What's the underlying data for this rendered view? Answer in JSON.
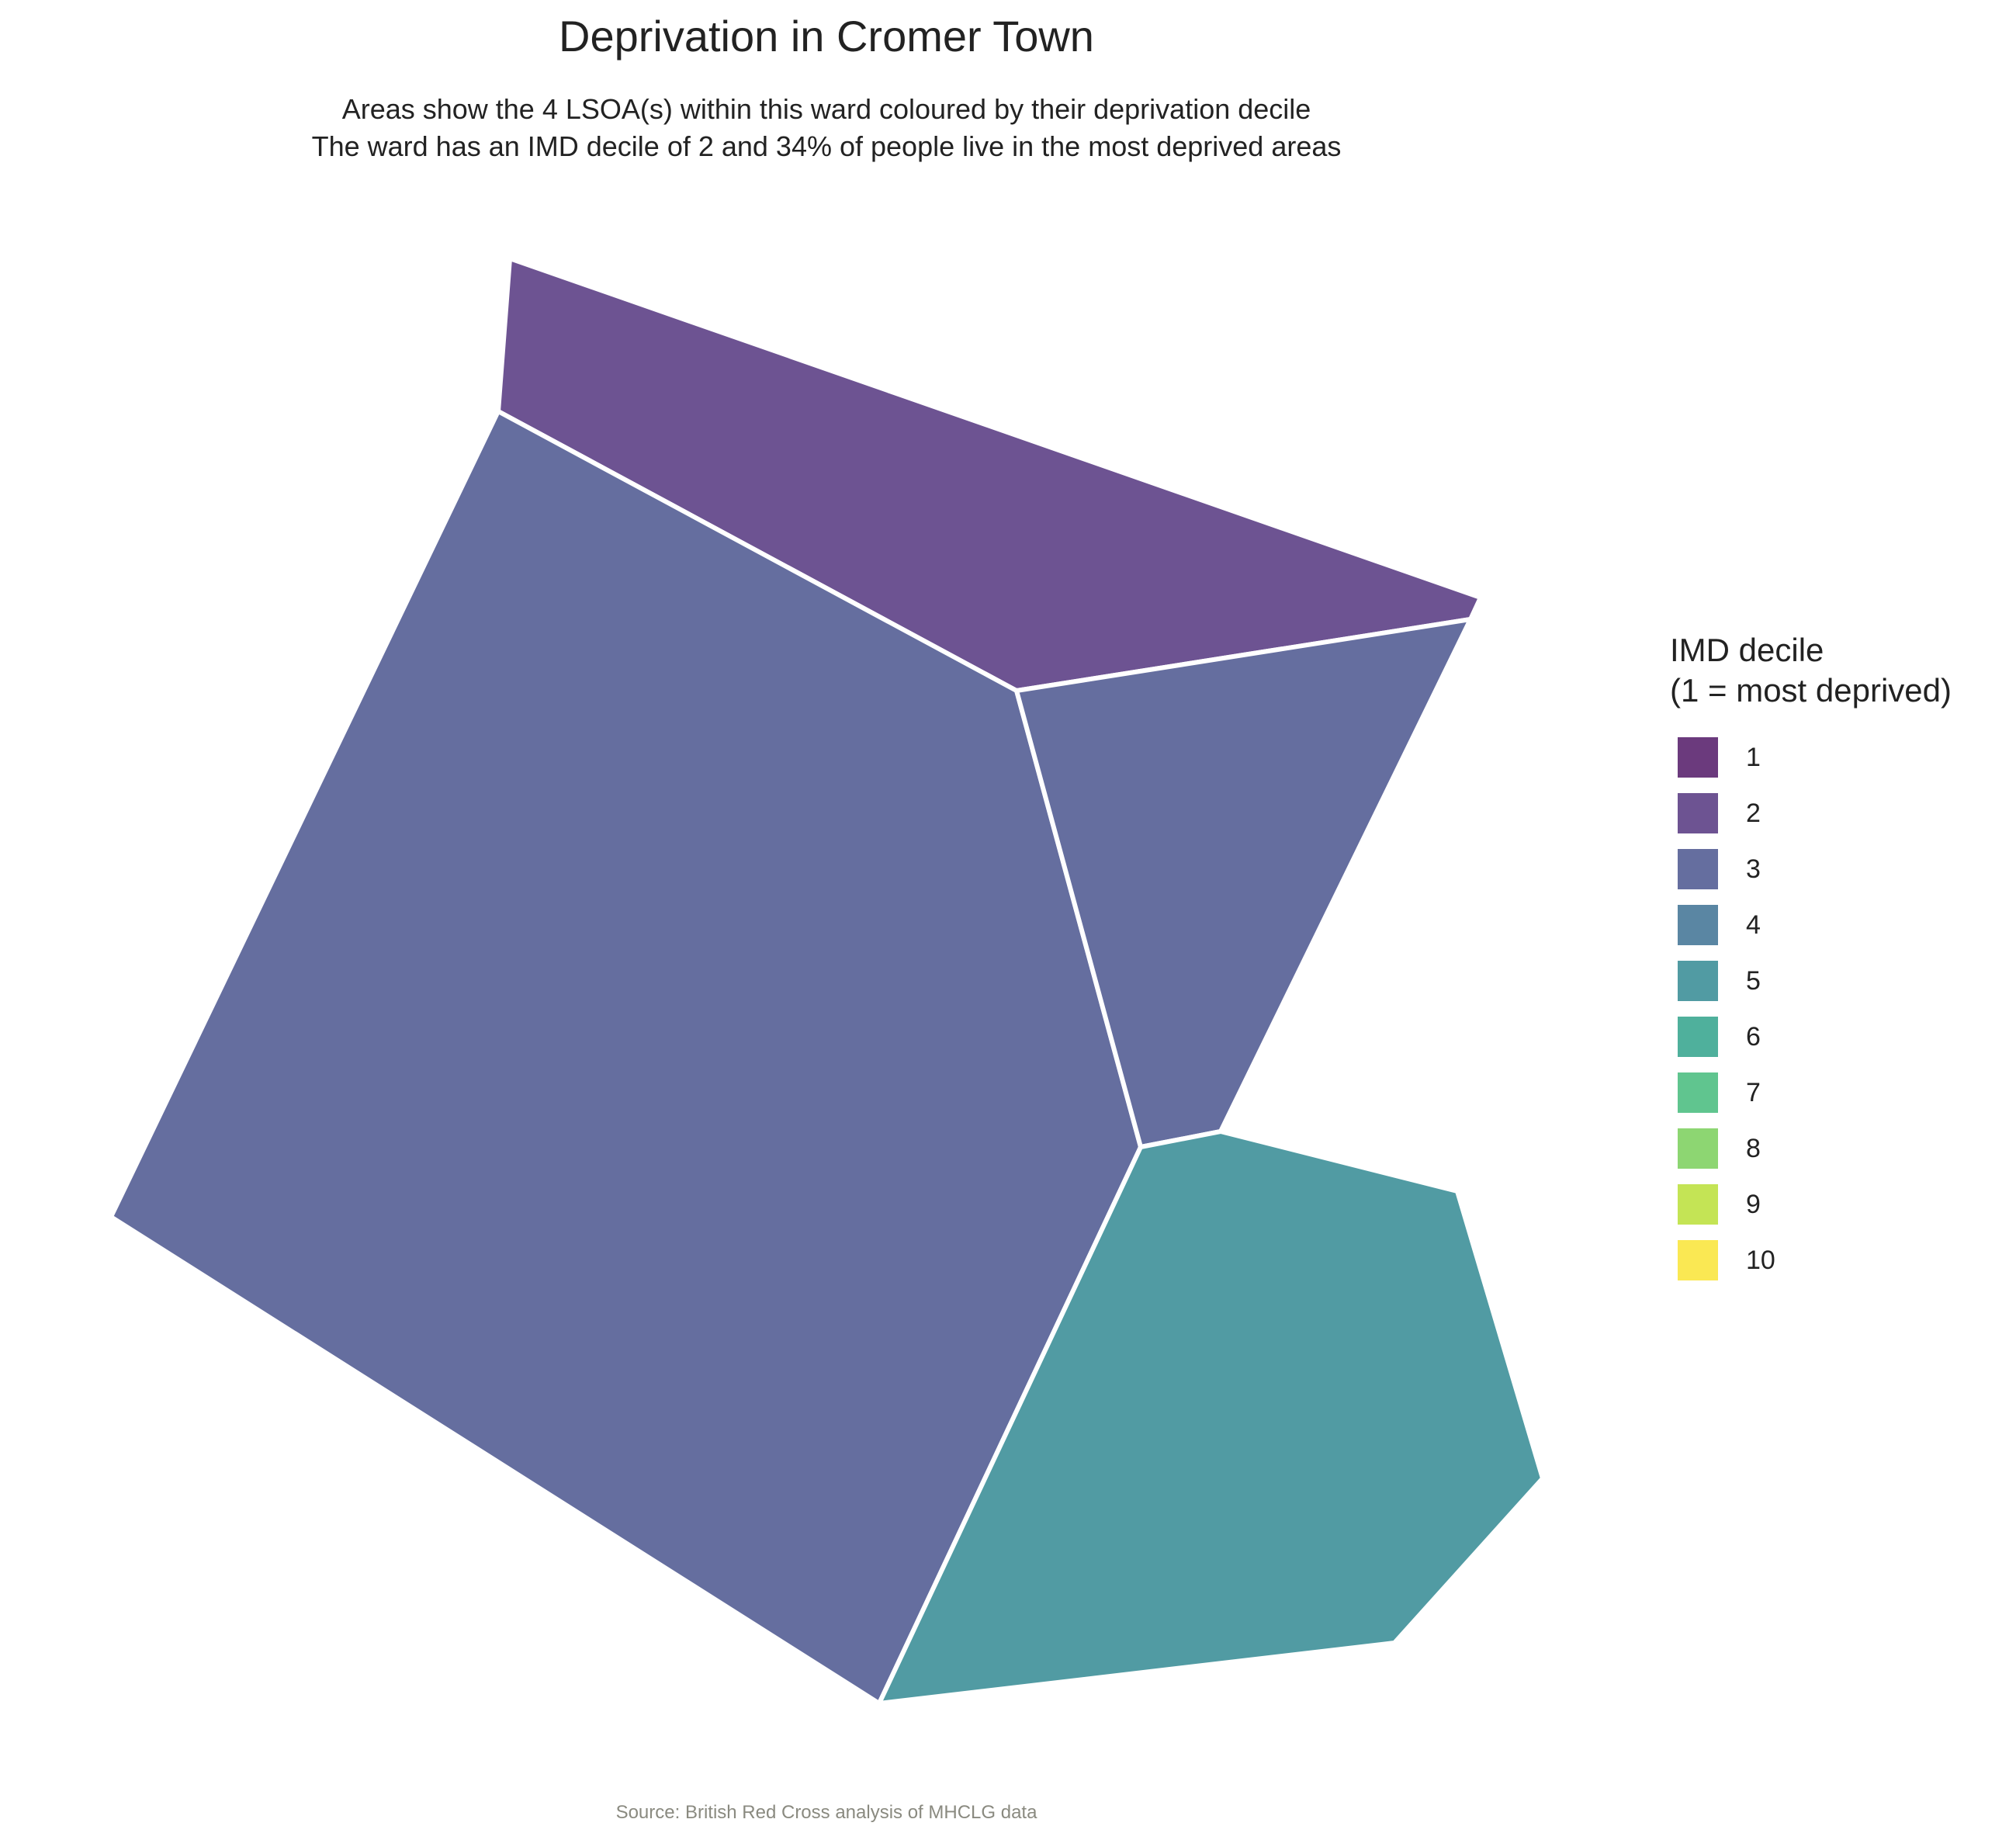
{
  "title": "Deprivation in Cromer Town",
  "subtitle_line1": "Areas show the 4 LSOA(s) within this ward coloured by their deprivation decile",
  "subtitle_line2": "The ward has an IMD decile of 2 and 34% of people live in the most deprived areas",
  "caption": "Source: British Red Cross analysis of MHCLG data",
  "legend": {
    "title_line1": "IMD decile",
    "title_line2": "(1 = most deprived)",
    "items": [
      {
        "label": "1",
        "color": "#6b3a7d"
      },
      {
        "label": "2",
        "color": "#6d5392"
      },
      {
        "label": "3",
        "color": "#656e9f"
      },
      {
        "label": "4",
        "color": "#5a86a3"
      },
      {
        "label": "5",
        "color": "#519ba3"
      },
      {
        "label": "6",
        "color": "#4fb09c"
      },
      {
        "label": "7",
        "color": "#60c58f"
      },
      {
        "label": "8",
        "color": "#8dd672"
      },
      {
        "label": "9",
        "color": "#c4e455"
      },
      {
        "label": "10",
        "color": "#fae853"
      }
    ]
  },
  "map": {
    "areas": [
      {
        "name": "north-lsoa",
        "decile": 2,
        "color": "#6d5392"
      },
      {
        "name": "west-lsoa",
        "decile": 3,
        "color": "#656e9f"
      },
      {
        "name": "east-lsoa",
        "decile": 3,
        "color": "#656e9f"
      },
      {
        "name": "south-lsoa",
        "decile": 5,
        "color": "#519ba3"
      }
    ]
  }
}
